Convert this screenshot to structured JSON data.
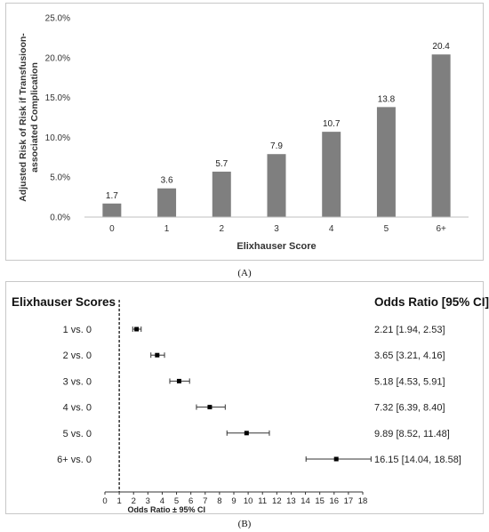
{
  "chart_data": [
    {
      "type": "bar",
      "categories": [
        "0",
        "1",
        "2",
        "3",
        "4",
        "5",
        "6+"
      ],
      "values": [
        1.7,
        3.6,
        5.7,
        7.9,
        10.7,
        13.8,
        20.4
      ],
      "data_labels": [
        "1.7",
        "3.6",
        "5.7",
        "7.9",
        "10.7",
        "13.8",
        "20.4"
      ],
      "xlabel": "Elixhauser Score",
      "ylabel_lines": [
        "Adjusted Risk of Risk if Transfusioon-",
        "associated Complication"
      ],
      "ylim": [
        0,
        25
      ],
      "yticks": [
        "0.0%",
        "5.0%",
        "10.0%",
        "15.0%",
        "20.0%",
        "25.0%"
      ],
      "bar_color": "#7f7f7f",
      "grid": false
    },
    {
      "type": "forest",
      "column_header_left": "Elixhauser Scores",
      "column_header_right": "Odds Ratio [95% CI]",
      "rows": [
        {
          "label": "1 vs. 0",
          "or": 2.21,
          "lo": 1.94,
          "hi": 2.53,
          "text": "2.21 [1.94, 2.53]"
        },
        {
          "label": "2 vs. 0",
          "or": 3.65,
          "lo": 3.21,
          "hi": 4.16,
          "text": "3.65 [3.21, 4.16]"
        },
        {
          "label": "3 vs. 0",
          "or": 5.18,
          "lo": 4.53,
          "hi": 5.91,
          "text": "5.18 [4.53, 5.91]"
        },
        {
          "label": "4 vs. 0",
          "or": 7.32,
          "lo": 6.39,
          "hi": 8.4,
          "text": "7.32 [6.39, 8.40]"
        },
        {
          "label": "5 vs. 0",
          "or": 9.89,
          "lo": 8.52,
          "hi": 11.48,
          "text": "9.89 [8.52, 11.48]"
        },
        {
          "label": "6+ vs. 0",
          "or": 16.15,
          "lo": 14.04,
          "hi": 18.58,
          "text": "16.15 [14.04, 18.58]"
        }
      ],
      "xlabel": "Odds Ratio ± 95% CI",
      "xlim": [
        0,
        18
      ],
      "xticks": [
        "0",
        "1",
        "2",
        "3",
        "4",
        "5",
        "6",
        "7",
        "8",
        "9",
        "10",
        "11",
        "12",
        "13",
        "14",
        "15",
        "16",
        "17",
        "18"
      ],
      "reference_line": 1
    }
  ],
  "captions": {
    "a": "(A)",
    "b": "(B)"
  }
}
